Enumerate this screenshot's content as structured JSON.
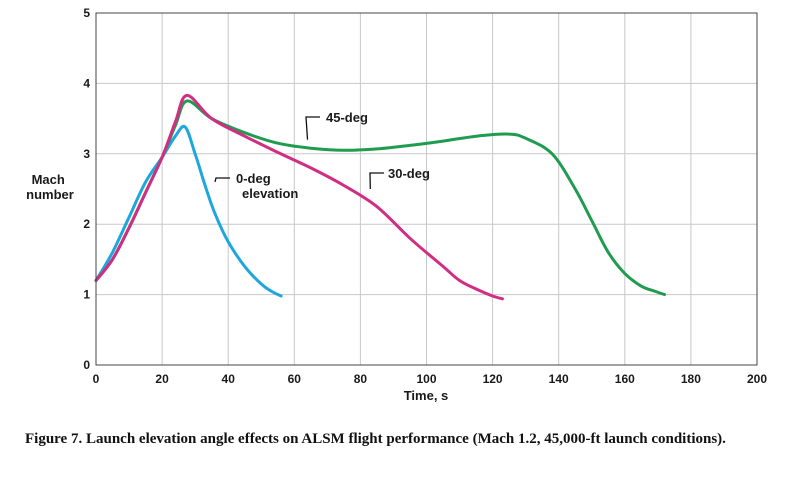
{
  "chart_data": {
    "type": "line",
    "xlabel": "Time, s",
    "ylabel_lines": [
      "Mach",
      "number"
    ],
    "xlim": [
      0,
      200
    ],
    "ylim": [
      0,
      5
    ],
    "x_ticks": [
      "0",
      "20",
      "40",
      "60",
      "80",
      "100",
      "120",
      "140",
      "160",
      "180",
      "200"
    ],
    "y_ticks": [
      "0",
      "1",
      "2",
      "3",
      "4",
      "5"
    ],
    "grid": true,
    "series": [
      {
        "name": "0-deg elevation",
        "label_lines": [
          "0-deg",
          "elevation"
        ],
        "color": "#1ea7dc",
        "points": [
          [
            0,
            1.2
          ],
          [
            5,
            1.6
          ],
          [
            10,
            2.1
          ],
          [
            15,
            2.6
          ],
          [
            20,
            2.95
          ],
          [
            24,
            3.25
          ],
          [
            27,
            3.38
          ],
          [
            30,
            3.0
          ],
          [
            33,
            2.55
          ],
          [
            36,
            2.15
          ],
          [
            40,
            1.75
          ],
          [
            45,
            1.4
          ],
          [
            50,
            1.15
          ],
          [
            53,
            1.05
          ],
          [
            56,
            0.98
          ]
        ]
      },
      {
        "name": "30-deg",
        "label_lines": [
          "30-deg"
        ],
        "color": "#d12e83",
        "points": [
          [
            0,
            1.2
          ],
          [
            5,
            1.5
          ],
          [
            10,
            1.95
          ],
          [
            15,
            2.45
          ],
          [
            20,
            2.95
          ],
          [
            24,
            3.45
          ],
          [
            27.5,
            3.83
          ],
          [
            35,
            3.5
          ],
          [
            45,
            3.25
          ],
          [
            55,
            3.02
          ],
          [
            65,
            2.8
          ],
          [
            75,
            2.55
          ],
          [
            85,
            2.25
          ],
          [
            95,
            1.8
          ],
          [
            105,
            1.4
          ],
          [
            110,
            1.2
          ],
          [
            115,
            1.08
          ],
          [
            120,
            0.98
          ],
          [
            123,
            0.94
          ]
        ]
      },
      {
        "name": "45-deg",
        "label_lines": [
          "45-deg"
        ],
        "color": "#1f9c4f",
        "points": [
          [
            0,
            1.2
          ],
          [
            5,
            1.5
          ],
          [
            10,
            1.95
          ],
          [
            15,
            2.45
          ],
          [
            20,
            2.95
          ],
          [
            24,
            3.4
          ],
          [
            27.5,
            3.75
          ],
          [
            35,
            3.5
          ],
          [
            45,
            3.3
          ],
          [
            55,
            3.15
          ],
          [
            65,
            3.08
          ],
          [
            75,
            3.05
          ],
          [
            85,
            3.07
          ],
          [
            95,
            3.12
          ],
          [
            105,
            3.18
          ],
          [
            115,
            3.25
          ],
          [
            125,
            3.28
          ],
          [
            130,
            3.22
          ],
          [
            138,
            3.0
          ],
          [
            145,
            2.5
          ],
          [
            150,
            2.05
          ],
          [
            155,
            1.6
          ],
          [
            160,
            1.3
          ],
          [
            165,
            1.12
          ],
          [
            169,
            1.05
          ],
          [
            172,
            1.0
          ]
        ]
      }
    ]
  },
  "caption": "Figure 7. Launch elevation angle effects on ALSM flight performance (Mach 1.2, 45,000-ft launch conditions)."
}
